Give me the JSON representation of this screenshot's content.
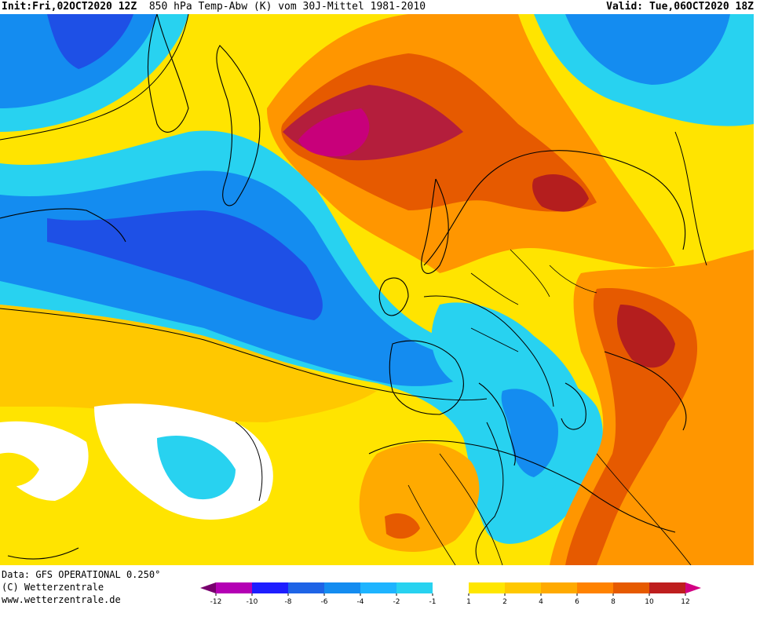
{
  "header": {
    "init_label": "Init:",
    "init_value": "Fri,02OCT2020 12Z",
    "title": "850 hPa Temp-Abw (K) vom 30J-Mittel 1981-2010",
    "valid_label": "Valid:",
    "valid_value": "Tue,06OCT2020 18Z"
  },
  "credits": {
    "data_source": "Data: GFS OPERATIONAL 0.250°",
    "copyright": "(C) Wetterzentrale",
    "website": "www.wetterzentrale.de"
  },
  "colorbar": {
    "unit": "K",
    "ticks": [
      "-12",
      "-10",
      "-8",
      "-6",
      "-4",
      "-2",
      "-1",
      "1",
      "2",
      "4",
      "6",
      "8",
      "10",
      "12"
    ],
    "colors": [
      "#b400b4",
      "#1e1eff",
      "#1e64e6",
      "#148cf0",
      "#1eb4ff",
      "#28d2f0",
      "#ffffff",
      "#ffe600",
      "#ffc800",
      "#ffaa00",
      "#ff8200",
      "#e65a00",
      "#be1e1e"
    ],
    "end_colors": {
      "low": "#78006e",
      "high": "#d20082"
    }
  },
  "colors": {
    "anomaly_warm_strong": "#b4005a",
    "anomaly_warm": "#e65a00",
    "anomaly_orange": "#ff9600",
    "anomaly_yellow": "#ffe400",
    "anomaly_neutral": "#ffffff",
    "anomaly_cold_light": "#28d2f0",
    "anomaly_cold": "#148cf0",
    "anomaly_cold_strong": "#1e50e6"
  }
}
